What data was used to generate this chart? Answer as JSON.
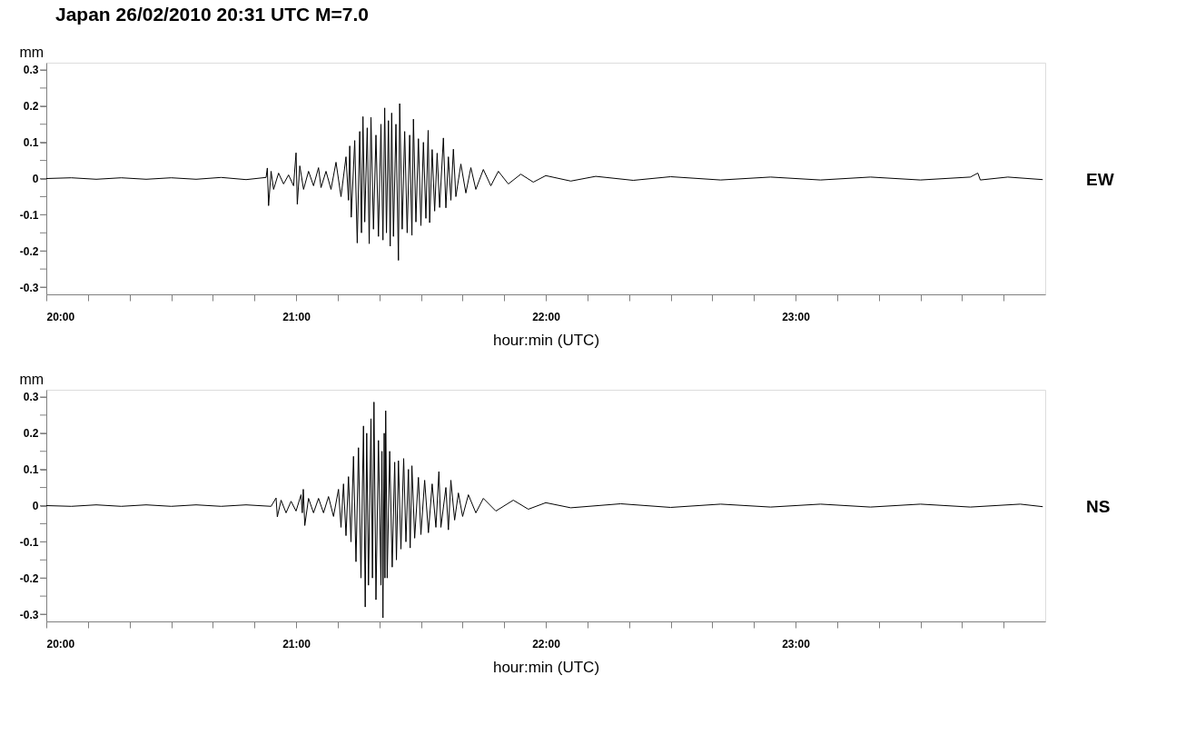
{
  "chart_data": [
    {
      "type": "line",
      "title": "Japan 26/02/2010 20:31 UTC M=7.0",
      "xlabel": "hour:min (UTC)",
      "ylabel": "mm",
      "xlim": [
        20,
        24
      ],
      "ylim": [
        -0.32,
        0.32
      ],
      "xticks": [
        {
          "value": 20,
          "label": "20:00"
        },
        {
          "value": 20.1667,
          "label": null
        },
        {
          "value": 20.3333,
          "label": null
        },
        {
          "value": 20.5,
          "label": null
        },
        {
          "value": 20.6667,
          "label": null
        },
        {
          "value": 20.8333,
          "label": null
        },
        {
          "value": 21,
          "label": "21:00"
        },
        {
          "value": 21.1667,
          "label": null
        },
        {
          "value": 21.3333,
          "label": null
        },
        {
          "value": 21.5,
          "label": null
        },
        {
          "value": 21.6667,
          "label": null
        },
        {
          "value": 21.8333,
          "label": null
        },
        {
          "value": 22,
          "label": "22:00"
        },
        {
          "value": 22.1667,
          "label": null
        },
        {
          "value": 22.3333,
          "label": null
        },
        {
          "value": 22.5,
          "label": null
        },
        {
          "value": 22.6667,
          "label": null
        },
        {
          "value": 22.8333,
          "label": null
        },
        {
          "value": 23,
          "label": "23:00"
        },
        {
          "value": 23.1667,
          "label": null
        },
        {
          "value": 23.3333,
          "label": null
        },
        {
          "value": 23.5,
          "label": null
        },
        {
          "value": 23.6667,
          "label": null
        },
        {
          "value": 23.8333,
          "label": null
        }
      ],
      "yticks": [
        -0.3,
        {
          "value": -0.25,
          "label": null
        },
        -0.2,
        {
          "value": -0.15,
          "label": null
        },
        -0.1,
        {
          "value": -0.05,
          "label": null
        },
        0,
        {
          "value": 0.05,
          "label": null
        },
        0.1,
        {
          "value": 0.15,
          "label": null
        },
        0.2,
        {
          "value": 0.25,
          "label": null
        },
        0.3
      ],
      "x": [
        20.0,
        20.1,
        20.2,
        20.3,
        20.4,
        20.5,
        20.6,
        20.7,
        20.8,
        20.88,
        20.885,
        20.89,
        20.9,
        20.91,
        20.93,
        20.95,
        20.97,
        20.99,
        21.0,
        21.005,
        21.015,
        21.03,
        21.05,
        21.07,
        21.09,
        21.1,
        21.12,
        21.14,
        21.16,
        21.18,
        21.2,
        21.21,
        21.215,
        21.221,
        21.235,
        21.245,
        21.255,
        21.262,
        21.268,
        21.275,
        21.285,
        21.293,
        21.3,
        21.31,
        21.32,
        21.33,
        21.34,
        21.348,
        21.355,
        21.362,
        21.37,
        21.377,
        21.383,
        21.39,
        21.4,
        21.41,
        21.415,
        21.425,
        21.435,
        21.445,
        21.455,
        21.464,
        21.47,
        21.48,
        21.49,
        21.5,
        21.51,
        21.52,
        21.529,
        21.535,
        21.545,
        21.555,
        21.565,
        21.575,
        21.59,
        21.6,
        21.61,
        21.62,
        21.63,
        21.64,
        21.66,
        21.68,
        21.7,
        21.72,
        21.75,
        21.78,
        21.81,
        21.85,
        21.9,
        21.95,
        22.0,
        22.1,
        22.2,
        22.35,
        22.5,
        22.7,
        22.9,
        23.1,
        23.3,
        23.5,
        23.7,
        23.73,
        23.74,
        23.85,
        23.99
      ],
      "series": [
        {
          "name": "EW",
          "color": "#000000",
          "values": [
            0,
            0.002,
            -0.002,
            0.002,
            -0.002,
            0.002,
            -0.002,
            0.003,
            -0.003,
            0.003,
            0.029,
            -0.075,
            0.02,
            -0.03,
            0.015,
            -0.015,
            0.01,
            -0.02,
            0.071,
            -0.071,
            0.035,
            -0.03,
            0.02,
            -0.02,
            0.03,
            -0.025,
            0.02,
            -0.03,
            0.045,
            -0.05,
            0.06,
            -0.06,
            0.09,
            -0.107,
            0.105,
            -0.178,
            0.13,
            -0.15,
            0.171,
            -0.12,
            0.14,
            -0.18,
            0.169,
            -0.14,
            0.12,
            -0.16,
            0.15,
            -0.17,
            0.195,
            -0.15,
            0.16,
            -0.187,
            0.181,
            -0.16,
            0.15,
            -0.226,
            0.207,
            -0.14,
            0.13,
            -0.15,
            0.12,
            -0.157,
            0.164,
            -0.12,
            0.11,
            -0.13,
            0.1,
            -0.11,
            0.133,
            -0.122,
            0.08,
            -0.09,
            0.07,
            -0.08,
            0.112,
            -0.081,
            0.06,
            -0.06,
            0.081,
            -0.05,
            0.04,
            -0.04,
            0.03,
            -0.03,
            0.025,
            -0.02,
            0.02,
            -0.015,
            0.012,
            -0.01,
            0.008,
            -0.007,
            0.006,
            -0.005,
            0.005,
            -0.004,
            0.004,
            -0.004,
            0.004,
            -0.004,
            0.004,
            0.015,
            -0.004,
            0.004,
            -0.003
          ]
        }
      ]
    },
    {
      "type": "line",
      "xlabel": "hour:min (UTC)",
      "ylabel": "mm",
      "xlim": [
        20,
        24
      ],
      "ylim": [
        -0.32,
        0.32
      ],
      "xticks": [
        {
          "value": 20,
          "label": "20:00"
        },
        {
          "value": 20.1667,
          "label": null
        },
        {
          "value": 20.3333,
          "label": null
        },
        {
          "value": 20.5,
          "label": null
        },
        {
          "value": 20.6667,
          "label": null
        },
        {
          "value": 20.8333,
          "label": null
        },
        {
          "value": 21,
          "label": "21:00"
        },
        {
          "value": 21.1667,
          "label": null
        },
        {
          "value": 21.3333,
          "label": null
        },
        {
          "value": 21.5,
          "label": null
        },
        {
          "value": 21.6667,
          "label": null
        },
        {
          "value": 21.8333,
          "label": null
        },
        {
          "value": 22,
          "label": "22:00"
        },
        {
          "value": 22.1667,
          "label": null
        },
        {
          "value": 22.3333,
          "label": null
        },
        {
          "value": 22.5,
          "label": null
        },
        {
          "value": 22.6667,
          "label": null
        },
        {
          "value": 22.8333,
          "label": null
        },
        {
          "value": 23,
          "label": "23:00"
        },
        {
          "value": 23.1667,
          "label": null
        },
        {
          "value": 23.3333,
          "label": null
        },
        {
          "value": 23.5,
          "label": null
        },
        {
          "value": 23.6667,
          "label": null
        },
        {
          "value": 23.8333,
          "label": null
        }
      ],
      "yticks": [
        -0.3,
        {
          "value": -0.25,
          "label": null
        },
        -0.2,
        {
          "value": -0.15,
          "label": null
        },
        -0.1,
        {
          "value": -0.05,
          "label": null
        },
        0,
        {
          "value": 0.05,
          "label": null
        },
        0.1,
        {
          "value": 0.15,
          "label": null
        },
        0.2,
        {
          "value": 0.25,
          "label": null
        },
        0.3
      ],
      "x": [
        20.0,
        20.1,
        20.2,
        20.3,
        20.4,
        20.5,
        20.6,
        20.7,
        20.8,
        20.9,
        20.92,
        20.925,
        20.94,
        20.96,
        20.98,
        21.0,
        21.02,
        21.025,
        21.029,
        21.035,
        21.05,
        21.07,
        21.09,
        21.11,
        21.13,
        21.15,
        21.17,
        21.18,
        21.19,
        21.2,
        21.21,
        21.22,
        21.23,
        21.24,
        21.25,
        21.26,
        21.27,
        21.277,
        21.283,
        21.29,
        21.3,
        21.306,
        21.312,
        21.32,
        21.33,
        21.34,
        21.344,
        21.348,
        21.353,
        21.356,
        21.359,
        21.365,
        21.375,
        21.385,
        21.395,
        21.402,
        21.41,
        21.42,
        21.431,
        21.44,
        21.45,
        21.457,
        21.464,
        21.475,
        21.49,
        21.5,
        21.515,
        21.53,
        21.545,
        21.56,
        21.572,
        21.58,
        21.6,
        21.61,
        21.62,
        21.635,
        21.65,
        21.667,
        21.69,
        21.72,
        21.75,
        21.8,
        21.87,
        21.93,
        22.0,
        22.1,
        22.3,
        22.5,
        22.7,
        22.9,
        23.1,
        23.3,
        23.5,
        23.7,
        23.9,
        23.99
      ],
      "series": [
        {
          "name": "NS",
          "color": "#000000",
          "values": [
            0,
            -0.002,
            0.002,
            -0.002,
            0.002,
            -0.002,
            0.002,
            -0.002,
            0.002,
            -0.002,
            0.021,
            -0.031,
            0.015,
            -0.02,
            0.012,
            -0.015,
            0.03,
            -0.02,
            0.045,
            -0.055,
            0.02,
            -0.02,
            0.02,
            -0.02,
            0.025,
            -0.03,
            0.045,
            -0.06,
            0.06,
            -0.083,
            0.08,
            -0.1,
            0.136,
            -0.155,
            0.16,
            -0.2,
            0.22,
            -0.28,
            0.2,
            -0.22,
            0.24,
            -0.2,
            0.286,
            -0.26,
            0.18,
            -0.22,
            0.15,
            -0.31,
            0.2,
            -0.2,
            0.262,
            -0.2,
            0.15,
            -0.17,
            0.12,
            -0.15,
            0.124,
            -0.12,
            0.13,
            -0.1,
            0.1,
            -0.117,
            0.11,
            -0.09,
            0.078,
            -0.08,
            0.07,
            -0.075,
            0.06,
            -0.06,
            0.094,
            -0.06,
            0.05,
            -0.067,
            0.07,
            -0.04,
            0.035,
            -0.03,
            0.03,
            -0.02,
            0.02,
            -0.015,
            0.015,
            -0.01,
            0.008,
            -0.006,
            0.005,
            -0.005,
            0.004,
            -0.004,
            0.004,
            -0.004,
            0.004,
            -0.004,
            0.004,
            -0.003
          ]
        }
      ]
    }
  ]
}
